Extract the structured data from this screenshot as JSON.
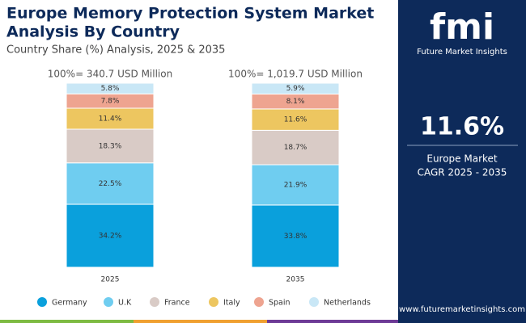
{
  "chart_data": {
    "type": "stacked_bar",
    "title": [
      "Europe Memory Protection System Market",
      "Analysis By Country"
    ],
    "subtitle": "Country Share (%) Analysis, 2025 & 2035",
    "categories": [
      "2025",
      "2035"
    ],
    "category_headers": [
      "100%= 340.7 USD Million",
      "100%= 1,019.7 USD Million"
    ],
    "ylim": [
      0,
      100
    ],
    "series": [
      {
        "name": "Germany",
        "color": "#0aa0dc",
        "values": [
          34.2,
          33.8
        ],
        "value_labels": [
          "34.2%",
          "33.8%"
        ]
      },
      {
        "name": "U.K",
        "color": "#6fcdf0",
        "values": [
          22.5,
          21.9
        ],
        "value_labels": [
          "22.5%",
          "21.9%"
        ]
      },
      {
        "name": "France",
        "color": "#d9cbc6",
        "values": [
          18.3,
          18.7
        ],
        "value_labels": [
          "18.3%",
          "18.7%"
        ]
      },
      {
        "name": "Italy",
        "color": "#edc660",
        "values": [
          11.4,
          11.6
        ],
        "value_labels": [
          "11.4%",
          "11.6%"
        ]
      },
      {
        "name": "Spain",
        "color": "#eea490",
        "values": [
          7.8,
          8.1
        ],
        "value_labels": [
          "7.8%",
          "8.1%"
        ]
      },
      {
        "name": "Netherlands",
        "color": "#c9e7f6",
        "values": [
          5.8,
          5.9
        ],
        "value_labels": [
          "5.8%",
          "5.9%"
        ]
      }
    ]
  },
  "side_panel": {
    "logo_mark": "fmi",
    "logo_name": "Future Market Insights",
    "cagr": "11.6%",
    "caption": [
      "Europe Market",
      "CAGR 2025 - 2035"
    ],
    "url": "www.futuremarketinsights.com"
  }
}
